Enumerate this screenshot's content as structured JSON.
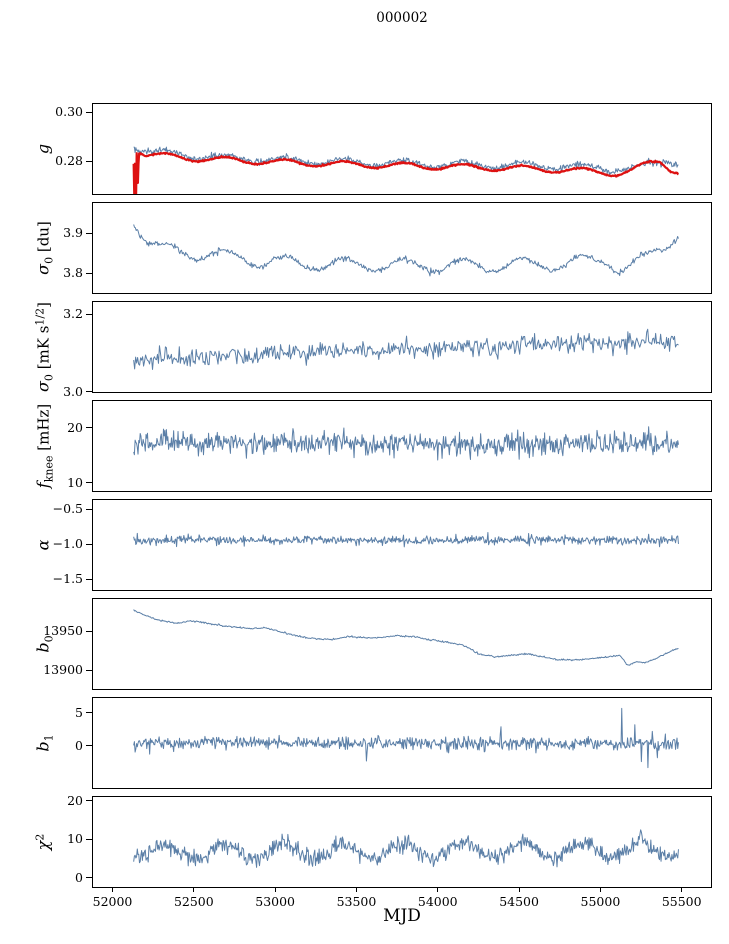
{
  "chart_data": {
    "type": "line",
    "title": "000002",
    "xlabel": "MJD",
    "xlim": [
      51880,
      55680
    ],
    "xticks": [
      {
        "v": 52000,
        "label": "52000"
      },
      {
        "v": 52500,
        "label": "52500"
      },
      {
        "v": 53000,
        "label": "53000"
      },
      {
        "v": 53500,
        "label": "53500"
      },
      {
        "v": 54000,
        "label": "54000"
      },
      {
        "v": 54500,
        "label": "54500"
      },
      {
        "v": 55000,
        "label": "55000"
      },
      {
        "v": 55500,
        "label": "55500"
      }
    ],
    "background": "#ffffff",
    "line_color": "#5b7fa7",
    "fit_color": "#dd1111",
    "panels": [
      {
        "name": "g",
        "ylabel_segments": [
          {
            "t": "g",
            "s": "i"
          }
        ],
        "ylim": [
          0.2666,
          0.3033
        ],
        "yticks": [
          {
            "v": 0.3,
            "label": "0.30"
          },
          {
            "v": 0.28,
            "label": "0.28"
          }
        ],
        "series": [
          {
            "color": "#5b7fa7",
            "lw": 1,
            "n": 750,
            "noise": 0.0006,
            "osc_amp": 0.0013,
            "osc_period": 365.25,
            "osc_phase": 52240,
            "kp": [
              [
                52130,
                0.2868
              ],
              [
                52160,
                0.2852
              ],
              [
                52250,
                0.2838
              ],
              [
                52450,
                0.2824
              ],
              [
                52700,
                0.2814
              ],
              [
                53000,
                0.2806
              ],
              [
                53400,
                0.2798
              ],
              [
                53900,
                0.279
              ],
              [
                54400,
                0.2784
              ],
              [
                54800,
                0.2778
              ],
              [
                55050,
                0.277
              ],
              [
                55200,
                0.2768
              ],
              [
                55330,
                0.2788
              ],
              [
                55420,
                0.2812
              ],
              [
                55480,
                0.279
              ]
            ]
          },
          {
            "color": "#dd1111",
            "lw": 2.2,
            "n": 900,
            "noise": 0.00015,
            "osc_amp": 0.0012,
            "osc_period": 365.25,
            "osc_phase": 52240,
            "kp": [
              [
                52130,
                0.28
              ],
              [
                52134,
                0.2662
              ],
              [
                52139,
                0.2868
              ],
              [
                52144,
                0.2658
              ],
              [
                52149,
                0.286
              ],
              [
                52155,
                0.27
              ],
              [
                52162,
                0.2845
              ],
              [
                52200,
                0.2828
              ],
              [
                52350,
                0.2818
              ],
              [
                52600,
                0.2808
              ],
              [
                53000,
                0.2796
              ],
              [
                53500,
                0.2786
              ],
              [
                54000,
                0.2778
              ],
              [
                54400,
                0.2772
              ],
              [
                54700,
                0.2766
              ],
              [
                54950,
                0.2758
              ],
              [
                55100,
                0.275
              ],
              [
                55200,
                0.2762
              ],
              [
                55300,
                0.279
              ],
              [
                55370,
                0.28
              ],
              [
                55430,
                0.277
              ],
              [
                55480,
                0.2758
              ]
            ],
            "spikes": [
              [
                52134,
                0.2662
              ],
              [
                52144,
                0.2658
              ]
            ]
          }
        ]
      },
      {
        "name": "sigma0_du",
        "ylabel_segments": [
          {
            "t": "σ",
            "s": "i"
          },
          {
            "t": "0",
            "s": "sub"
          },
          {
            "t": " [du]",
            "s": "n"
          }
        ],
        "ylim": [
          3.75,
          3.975
        ],
        "yticks": [
          {
            "v": 3.9,
            "label": "3.9"
          },
          {
            "v": 3.8,
            "label": "3.8"
          }
        ],
        "series": [
          {
            "color": "#5b7fa7",
            "lw": 1,
            "n": 650,
            "noise": 0.0035,
            "osc_amp": 0.016,
            "osc_period": 365.25,
            "osc_phase": 52240,
            "kp": [
              [
                52130,
                3.938
              ],
              [
                52170,
                3.905
              ],
              [
                52220,
                3.878
              ],
              [
                52300,
                3.858
              ],
              [
                52450,
                3.852
              ],
              [
                52600,
                3.845
              ],
              [
                52900,
                3.83
              ],
              [
                53300,
                3.822
              ],
              [
                53800,
                3.818
              ],
              [
                54300,
                3.82
              ],
              [
                54700,
                3.822
              ],
              [
                54950,
                3.83
              ],
              [
                55050,
                3.835
              ],
              [
                55120,
                3.81
              ],
              [
                55180,
                3.815
              ],
              [
                55260,
                3.83
              ],
              [
                55340,
                3.855
              ],
              [
                55420,
                3.88
              ],
              [
                55480,
                3.9
              ]
            ]
          }
        ]
      },
      {
        "name": "sigma0_mK",
        "ylabel_segments": [
          {
            "t": "σ",
            "s": "i"
          },
          {
            "t": "0",
            "s": "sub"
          },
          {
            "t": " [mK s",
            "s": "n"
          },
          {
            "t": "1/2",
            "s": "sup"
          },
          {
            "t": "]",
            "s": "n"
          }
        ],
        "ylim": [
          2.999,
          3.231
        ],
        "yticks": [
          {
            "v": 3.2,
            "label": "3.2"
          },
          {
            "v": 3.0,
            "label": "3.0"
          }
        ],
        "series": [
          {
            "color": "#5b7fa7",
            "lw": 1,
            "n": 550,
            "noise": 0.012,
            "osc_amp": 0.004,
            "osc_period": 365.25,
            "osc_phase": 52240,
            "kp": [
              [
                52130,
                3.082
              ],
              [
                52400,
                3.088
              ],
              [
                52800,
                3.092
              ],
              [
                53200,
                3.1
              ],
              [
                53600,
                3.106
              ],
              [
                54000,
                3.112
              ],
              [
                54400,
                3.118
              ],
              [
                54800,
                3.124
              ],
              [
                55100,
                3.128
              ],
              [
                55480,
                3.128
              ]
            ]
          }
        ]
      },
      {
        "name": "f_knee",
        "ylabel_segments": [
          {
            "t": "f",
            "s": "i"
          },
          {
            "t": "knee",
            "s": "sub"
          },
          {
            "t": " [mHz]",
            "s": "n"
          }
        ],
        "ylim": [
          8.5,
          24.9
        ],
        "yticks": [
          {
            "v": 20,
            "label": "20"
          },
          {
            "v": 10,
            "label": "10"
          }
        ],
        "series": [
          {
            "color": "#5b7fa7",
            "lw": 1,
            "n": 750,
            "noise": 1.0,
            "osc_amp": 0.3,
            "osc_period": 365.25,
            "osc_phase": 52240,
            "kp": [
              [
                52130,
                17.3
              ],
              [
                55480,
                17.2
              ]
            ]
          }
        ]
      },
      {
        "name": "alpha",
        "ylabel_segments": [
          {
            "t": "α",
            "s": "i"
          }
        ],
        "ylim": [
          -1.657,
          -0.371
        ],
        "yticks": [
          {
            "v": -0.5,
            "label": "−0.5"
          },
          {
            "v": -1.0,
            "label": "−1.0"
          },
          {
            "v": -1.5,
            "label": "−1.5"
          }
        ],
        "series": [
          {
            "color": "#5b7fa7",
            "lw": 1,
            "n": 750,
            "noise": 0.032,
            "osc_amp": 0,
            "osc_period": 365.25,
            "osc_phase": 52240,
            "kp": [
              [
                52130,
                -0.945
              ],
              [
                55480,
                -0.945
              ]
            ]
          }
        ]
      },
      {
        "name": "b0",
        "ylabel_segments": [
          {
            "t": "b",
            "s": "i"
          },
          {
            "t": "0",
            "s": "sub"
          }
        ],
        "ylim": [
          13876,
          13991
        ],
        "yticks": [
          {
            "v": 13950,
            "label": "13950"
          },
          {
            "v": 13900,
            "label": "13900"
          }
        ],
        "series": [
          {
            "color": "#5b7fa7",
            "lw": 1,
            "n": 650,
            "noise": 0.5,
            "osc_amp": 0,
            "osc_period": 365.25,
            "osc_phase": 52240,
            "kp": [
              [
                52130,
                13977
              ],
              [
                52200,
                13970
              ],
              [
                52300,
                13963
              ],
              [
                52400,
                13960
              ],
              [
                52480,
                13963
              ],
              [
                52560,
                13961
              ],
              [
                52700,
                13956
              ],
              [
                52850,
                13953
              ],
              [
                52950,
                13954
              ],
              [
                53050,
                13948
              ],
              [
                53200,
                13941
              ],
              [
                53350,
                13939
              ],
              [
                53450,
                13943
              ],
              [
                53600,
                13941
              ],
              [
                53750,
                13944
              ],
              [
                53850,
                13943
              ],
              [
                53950,
                13939
              ],
              [
                54050,
                13936
              ],
              [
                54150,
                13933
              ],
              [
                54250,
                13921
              ],
              [
                54350,
                13917
              ],
              [
                54450,
                13919
              ],
              [
                54550,
                13921
              ],
              [
                54650,
                13917
              ],
              [
                54750,
                13913
              ],
              [
                54850,
                13913
              ],
              [
                54950,
                13915
              ],
              [
                55050,
                13917
              ],
              [
                55120,
                13919
              ],
              [
                55170,
                13906
              ],
              [
                55220,
                13911
              ],
              [
                55270,
                13909
              ],
              [
                55330,
                13914
              ],
              [
                55400,
                13921
              ],
              [
                55480,
                13928
              ]
            ]
          }
        ]
      },
      {
        "name": "b1",
        "ylabel_segments": [
          {
            "t": "b",
            "s": "i"
          },
          {
            "t": "1",
            "s": "sub"
          }
        ],
        "ylim": [
          -6.4,
          7.27
        ],
        "yticks": [
          {
            "v": 5,
            "label": "5"
          },
          {
            "v": 0,
            "label": "0"
          }
        ],
        "series": [
          {
            "color": "#5b7fa7",
            "lw": 1,
            "n": 750,
            "noise": 0.5,
            "osc_amp": 0,
            "osc_period": 365.25,
            "osc_phase": 52240,
            "kp": [
              [
                52130,
                0.45
              ],
              [
                55480,
                0.3
              ]
            ],
            "spikes": [
              [
                53560,
                -2.3
              ],
              [
                54390,
                2.9
              ],
              [
                55130,
                5.7
              ],
              [
                55210,
                3.2
              ],
              [
                55250,
                -2.4
              ],
              [
                55290,
                -3.3
              ],
              [
                55320,
                2.2
              ],
              [
                55350,
                -1.8
              ],
              [
                55400,
                1.8
              ]
            ]
          }
        ]
      },
      {
        "name": "chi2",
        "ylabel_segments": [
          {
            "t": "χ",
            "s": "i"
          },
          {
            "t": "2",
            "s": "sup"
          }
        ],
        "ylim": [
          -2.4,
          21
        ],
        "yticks": [
          {
            "v": 20,
            "label": "20"
          },
          {
            "v": 10,
            "label": "10"
          },
          {
            "v": 0,
            "label": "0"
          }
        ],
        "series": [
          {
            "color": "#5b7fa7",
            "lw": 1,
            "n": 750,
            "noise": 1.1,
            "osc_amp": 2.0,
            "osc_period": 365.25,
            "osc_phase": 52240,
            "kp": [
              [
                52130,
                6.6
              ],
              [
                55480,
                7.3
              ]
            ]
          }
        ]
      }
    ]
  }
}
